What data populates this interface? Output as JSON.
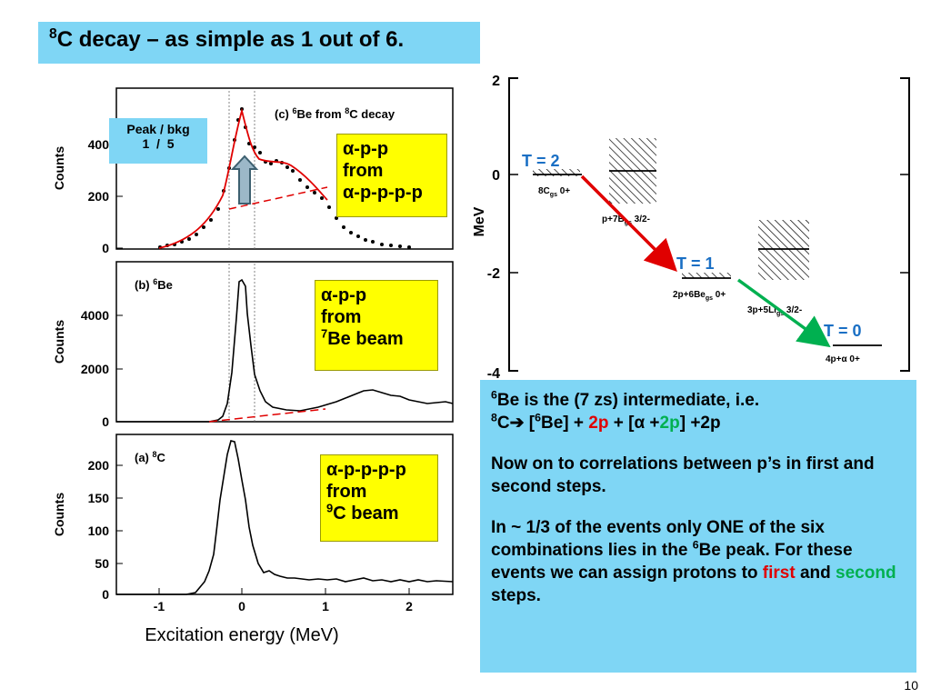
{
  "title": {
    "sup": "8",
    "text": "C decay – as simple as 1 out of 6."
  },
  "panels": {
    "ylabel": "Counts",
    "xlabel": "Excitation energy (MeV)",
    "x_ticks": [
      "-1",
      "0",
      "1",
      "2"
    ],
    "c": {
      "label_pre": "(c) ",
      "label_sup1": "6",
      "label_mid": "Be from ",
      "label_sup2": "8",
      "label_post": "C decay",
      "y_ticks": [
        "0",
        "200",
        "400"
      ]
    },
    "b": {
      "label_pre": "(b) ",
      "label_sup": "6",
      "label_post": "Be",
      "y_ticks": [
        "0",
        "2000",
        "4000"
      ]
    },
    "a": {
      "label_pre": "(a) ",
      "label_sup": "8",
      "label_post": "C",
      "y_ticks": [
        "0",
        "50",
        "100",
        "150",
        "200"
      ]
    }
  },
  "peak_box": {
    "line1": "Peak / bkg",
    "line2": "1  /  5"
  },
  "ybox_c": {
    "line1": "α-p-p",
    "line2": "from",
    "line3": "α-p-p-p-p"
  },
  "ybox_b": {
    "line1": "α-p-p",
    "line2": "from",
    "line3_sup": "7",
    "line3": "Be beam"
  },
  "ybox_a": {
    "line1": "α-p-p-p-p",
    "line2": "from",
    "line3_sup": "9",
    "line3": "C beam"
  },
  "level_diagram": {
    "ylabel": "MeV",
    "y_ticks": [
      "2",
      "0",
      "-2",
      "-4"
    ],
    "T2": "T = 2",
    "T1": "T = 1",
    "T0": "T = 0",
    "c8": "8Cgs 0+",
    "pB7": "p+7Bgs 3/2-",
    "pBe6": "2p+6Begs 0+",
    "pLi5": "3p+5Ligs 3/2-",
    "p4a": "4p+α 0+"
  },
  "info": {
    "line1_sup": "6",
    "line1": "Be is the (7 zs) intermediate, i.e.",
    "line2_sup1": "8",
    "line2_a": "C",
    "arrow": "➔",
    "line2_b": " [",
    "line2_sup2": "6",
    "line2_c": "Be] + ",
    "line2_d": "2p",
    "line2_e": " + [α +",
    "line2_f": "2p",
    "line2_g": "] +2p",
    "para2": "Now on to correlations between p’s in first and second steps.",
    "para3_a": "In ~ 1/3 of the events only ONE of the six combinations lies in the ",
    "para3_sup": "6",
    "para3_b": "Be peak. For these events we can assign protons to ",
    "first": "first",
    "and": " and ",
    "second": "second",
    "steps": " steps."
  },
  "page_number": "10",
  "colors": {
    "cyan_box": "#7fd6f5",
    "yellow_box": "#ffff00",
    "red": "#e00000",
    "green": "#00b050",
    "blue_text": "#1a6fc4"
  }
}
